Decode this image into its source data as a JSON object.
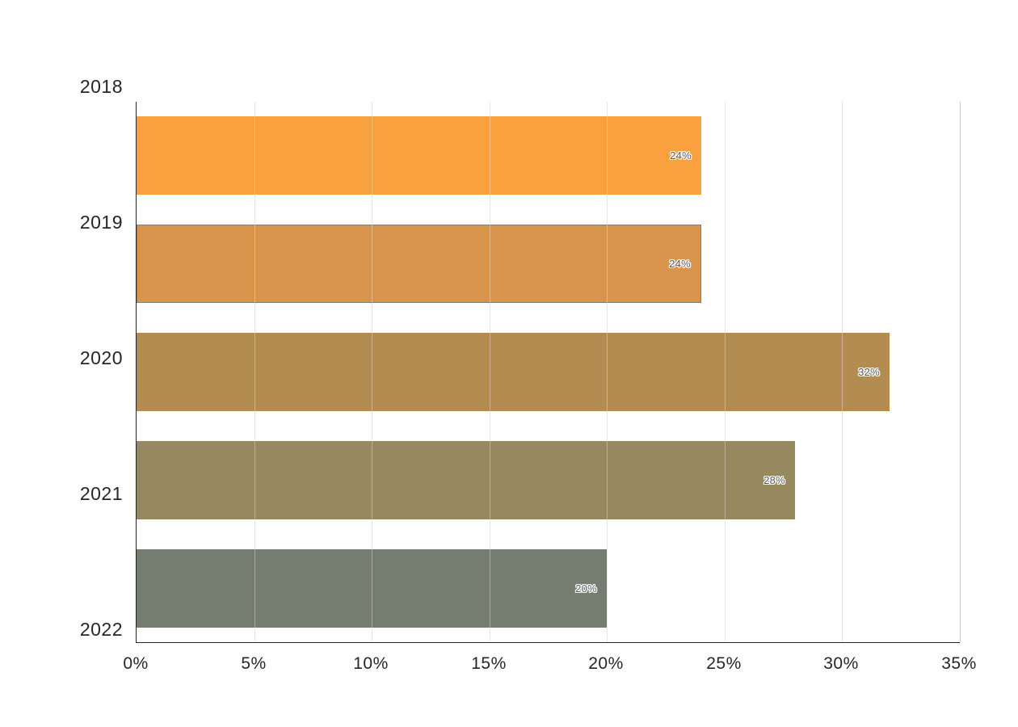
{
  "chart_data": {
    "type": "bar",
    "orientation": "horizontal",
    "title": "",
    "xlabel": "",
    "ylabel": "",
    "categories": [
      "2018",
      "2019",
      "2020",
      "2021",
      "2022"
    ],
    "values": [
      24,
      24,
      32,
      28,
      20
    ],
    "bar_labels": [
      "24%",
      "24%",
      "32%",
      "28%",
      "20%"
    ],
    "bar_colors": [
      "#F9A13E",
      "#D8944A",
      "#B38C52",
      "#97895F",
      "#757C70"
    ],
    "bar_border_colors": [
      "",
      "#7F7F7F",
      "",
      "",
      ""
    ],
    "xlim": [
      0,
      35
    ],
    "x_tick_values": [
      0,
      5,
      10,
      15,
      20,
      25,
      30,
      35
    ],
    "x_tick_labels": [
      "0%",
      "5%",
      "10%",
      "15%",
      "20%",
      "25%",
      "30%",
      "35%"
    ],
    "grid": "vertical",
    "legend": "none",
    "value_label_position": "inside-end",
    "colors": {
      "gridline": "#D9D9D9",
      "right_edge_gridline": "#A9A9A9",
      "axis_line": "#262626",
      "tick_label_text": "#262626",
      "value_label_text": "#595959",
      "value_label_outline": "#FFFFFF",
      "background": "#FFFFFF"
    }
  }
}
